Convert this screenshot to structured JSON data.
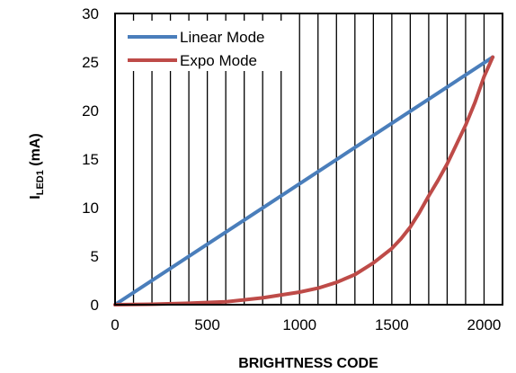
{
  "chart_data": {
    "type": "line",
    "xlabel": "BRIGHTNESS CODE",
    "ylabel_main": "I",
    "ylabel_sub": "LED1",
    "ylabel_unit": " (mA)",
    "xlim": [
      0,
      2100
    ],
    "ylim": [
      0,
      30
    ],
    "x_ticks": [
      0,
      500,
      1000,
      1500,
      2000
    ],
    "y_ticks": [
      0,
      5,
      10,
      15,
      20,
      25,
      30
    ],
    "grid": {
      "vertical": true,
      "horizontal": false,
      "vertical_step": 100
    },
    "legend_position": "top-left",
    "series": [
      {
        "name": "Linear Mode",
        "color": "#4a7ebb",
        "x": [
          0,
          2047
        ],
        "y": [
          0,
          25.5
        ]
      },
      {
        "name": "Expo Mode",
        "color": "#be4b48",
        "x": [
          0,
          200,
          400,
          600,
          800,
          1000,
          1100,
          1200,
          1300,
          1400,
          1500,
          1550,
          1600,
          1650,
          1700,
          1750,
          1800,
          1850,
          1900,
          1950,
          2000,
          2047
        ],
        "y": [
          0,
          0.05,
          0.15,
          0.3,
          0.7,
          1.3,
          1.7,
          2.3,
          3.1,
          4.3,
          5.8,
          6.8,
          8.0,
          9.5,
          11.2,
          12.8,
          14.5,
          16.5,
          18.5,
          20.8,
          23.5,
          25.5
        ]
      }
    ]
  }
}
